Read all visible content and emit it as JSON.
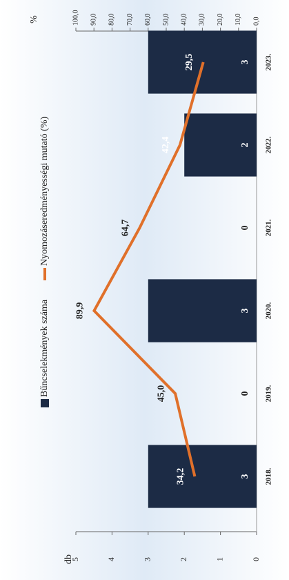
{
  "chart_data": {
    "type": "bar_line",
    "categories": [
      "2018.",
      "2019.",
      "2020.",
      "2021.",
      "2022.",
      "2023."
    ],
    "series": [
      {
        "name": "Bűncselekmények száma",
        "color": "#1c2b45",
        "type": "bar",
        "values": [
          3,
          0,
          3,
          0,
          2,
          3
        ]
      },
      {
        "name": "Nyomozáseredményességi mutató (%)",
        "color": "#e0702a",
        "type": "line",
        "axis": "y2",
        "values": [
          34.2,
          45.0,
          89.9,
          64.7,
          42.4,
          29.5
        ],
        "value_labels": [
          "34,2",
          "45,0",
          "89,9",
          "64,7",
          "42,4",
          "29,5"
        ]
      }
    ],
    "ylabel": "db",
    "y2label": "%",
    "ylim": [
      0,
      5
    ],
    "yticks": [
      0,
      1,
      2,
      3,
      4,
      5
    ],
    "y2lim": [
      0,
      100
    ],
    "y2ticks": [
      {
        "value": 0,
        "label": "0,0"
      },
      {
        "value": 10,
        "label": "10,0"
      },
      {
        "value": 20,
        "label": "20,0"
      },
      {
        "value": 30,
        "label": "30,0"
      },
      {
        "value": 40,
        "label": "40,0"
      },
      {
        "value": 50,
        "label": "50,0"
      },
      {
        "value": 60,
        "label": "60,0"
      },
      {
        "value": 70,
        "label": "70,0"
      },
      {
        "value": 80,
        "label": "80,0"
      },
      {
        "value": 90,
        "label": "90,0"
      },
      {
        "value": 100,
        "label": "100,0"
      }
    ],
    "legend": "top"
  }
}
